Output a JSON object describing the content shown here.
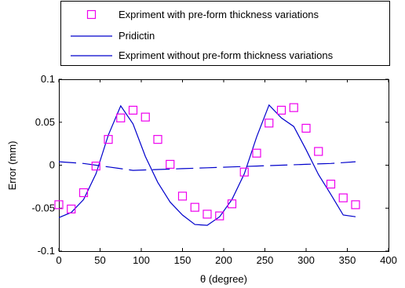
{
  "chart_data": {
    "type": "scatter",
    "xlabel": "θ (degree)",
    "ylabel": "Error (mm)",
    "xlim": [
      0,
      400
    ],
    "ylim": [
      -0.1,
      0.1
    ],
    "xticks": [
      "0",
      "50",
      "100",
      "150",
      "200",
      "250",
      "300",
      "350",
      "400"
    ],
    "yticks": [
      "-0.1",
      "-0.05",
      "0",
      "0.05",
      "0.1"
    ],
    "grid": false,
    "legend_position": "top",
    "series": [
      {
        "name": "Expriment with pre-form thickness variations",
        "style": "square-markers",
        "color": "#ee00ee",
        "x": [
          0,
          15,
          30,
          45,
          60,
          75,
          90,
          105,
          120,
          135,
          150,
          165,
          180,
          195,
          210,
          225,
          240,
          255,
          270,
          285,
          300,
          315,
          330,
          345,
          360
        ],
        "y": [
          -0.046,
          -0.051,
          -0.032,
          -0.001,
          0.03,
          0.055,
          0.064,
          0.056,
          0.03,
          0.001,
          -0.036,
          -0.049,
          -0.057,
          -0.059,
          -0.045,
          -0.008,
          0.014,
          0.049,
          0.064,
          0.067,
          0.043,
          0.016,
          -0.022,
          -0.038,
          -0.046
        ]
      },
      {
        "name": "Pridictin",
        "style": "solid-line",
        "color": "#0000cc",
        "x": [
          0,
          15,
          30,
          45,
          60,
          75,
          90,
          105,
          120,
          135,
          150,
          165,
          180,
          195,
          210,
          225,
          240,
          255,
          270,
          285,
          300,
          315,
          330,
          345,
          360
        ],
        "y": [
          -0.061,
          -0.055,
          -0.04,
          -0.01,
          0.035,
          0.069,
          0.048,
          0.01,
          -0.02,
          -0.043,
          -0.058,
          -0.069,
          -0.07,
          -0.06,
          -0.04,
          -0.01,
          0.033,
          0.07,
          0.055,
          0.045,
          0.018,
          -0.011,
          -0.034,
          -0.058,
          -0.06
        ]
      },
      {
        "name": "Expriment without pre-form thickness variations",
        "style": "dashed-line",
        "color": "#0000cc",
        "x": [
          0,
          30,
          60,
          90,
          120,
          150,
          180,
          210,
          240,
          270,
          300,
          330,
          360
        ],
        "y": [
          0.004,
          0.002,
          -0.002,
          -0.006,
          -0.005,
          -0.004,
          -0.003,
          -0.002,
          -0.001,
          0,
          0.001,
          0.002,
          0.004
        ]
      }
    ]
  }
}
